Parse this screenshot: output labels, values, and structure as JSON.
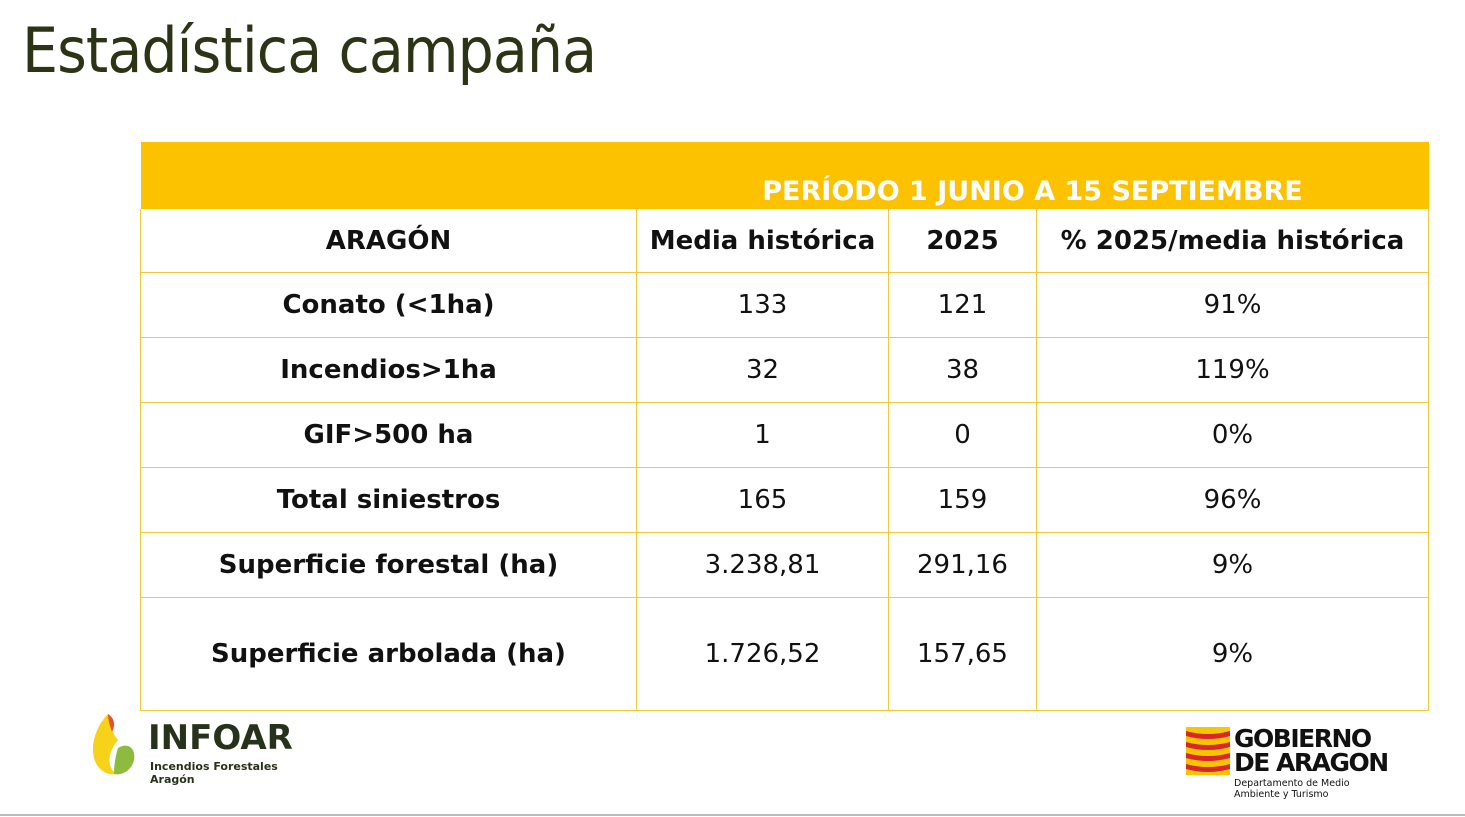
{
  "title": "Estadística campaña",
  "table": {
    "period": "PERÍODO 1 JUNIO A 15 SEPTIEMBRE",
    "headers": [
      "ARAGÓN",
      "Media histórica",
      "2025",
      "% 2025/media histórica"
    ],
    "rows": [
      [
        "Conato (<1ha)",
        "133",
        "121",
        "91%"
      ],
      [
        "Incendios>1ha",
        "32",
        "38",
        "119%"
      ],
      [
        "GIF>500 ha",
        "1",
        "0",
        "0%"
      ],
      [
        "Total siniestros",
        "165",
        "159",
        "96%"
      ],
      [
        "Superficie forestal (ha)",
        "3.238,81",
        "291,16",
        "9%"
      ],
      [
        "Superficie arbolada (ha)",
        "1.726,52",
        "157,65",
        "9%"
      ]
    ]
  },
  "logos": {
    "infoar": {
      "name": "INFOAR",
      "subtitle": "Incendios Forestales Aragón"
    },
    "gobierno": {
      "line1": "GOBIERNO",
      "line2": "DE ARAGON",
      "department": "Departamento de Medio Ambiente y Turismo"
    }
  },
  "colors": {
    "accent": "#fcc200",
    "title": "#2b3414",
    "border": "#f3c93c"
  }
}
